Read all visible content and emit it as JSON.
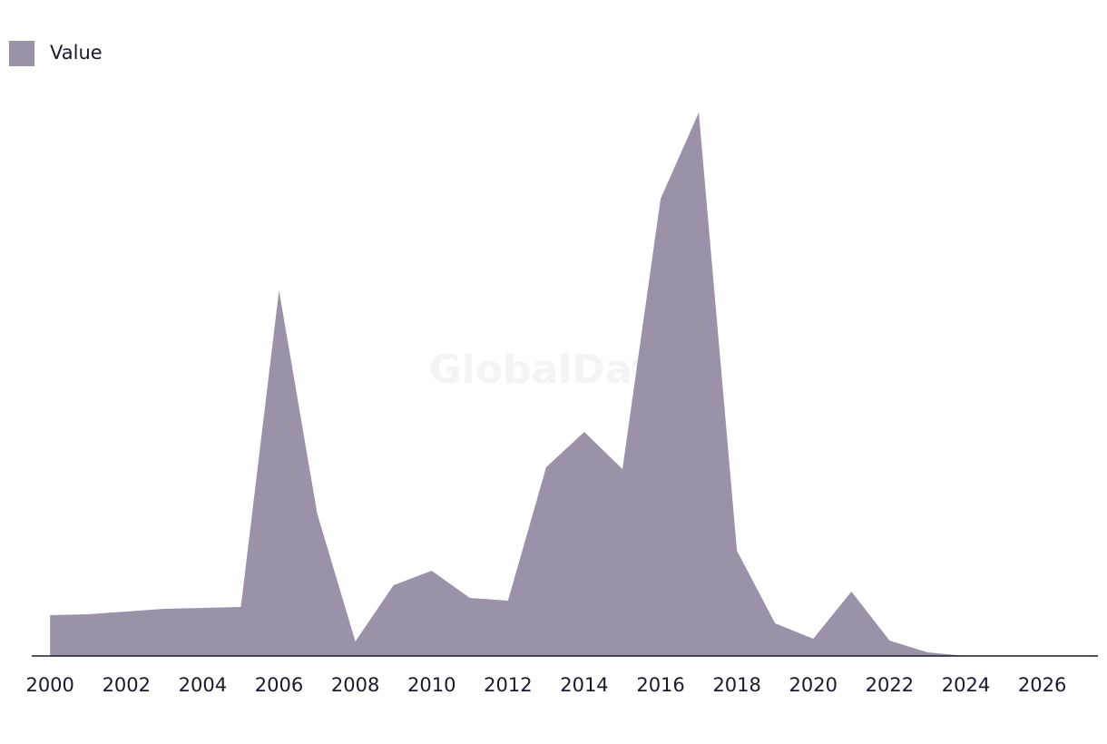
{
  "chart_data": {
    "type": "area",
    "watermark": "GlobalData",
    "x": [
      2000,
      2001,
      2002,
      2003,
      2004,
      2005,
      2006,
      2007,
      2008,
      2009,
      2010,
      2011,
      2012,
      2013,
      2014,
      2015,
      2016,
      2017,
      2018,
      2019,
      2020,
      2021,
      2022,
      2023,
      2024
    ],
    "series": [
      {
        "name": "Value",
        "color": "#9b91a9",
        "values": [
          45,
          46,
          49,
          52,
          53,
          54,
          403,
          157,
          16,
          78,
          94,
          64,
          61,
          208,
          247,
          206,
          504,
          599,
          116,
          36,
          19,
          71,
          17,
          4,
          0
        ]
      }
    ],
    "xlim": [
      1999.52,
      2027.46
    ],
    "xticks": [
      2000,
      2002,
      2004,
      2006,
      2008,
      2010,
      2012,
      2014,
      2016,
      2018,
      2020,
      2022,
      2024,
      2026
    ],
    "ylim": [
      0,
      620
    ],
    "legend": "top-left"
  }
}
